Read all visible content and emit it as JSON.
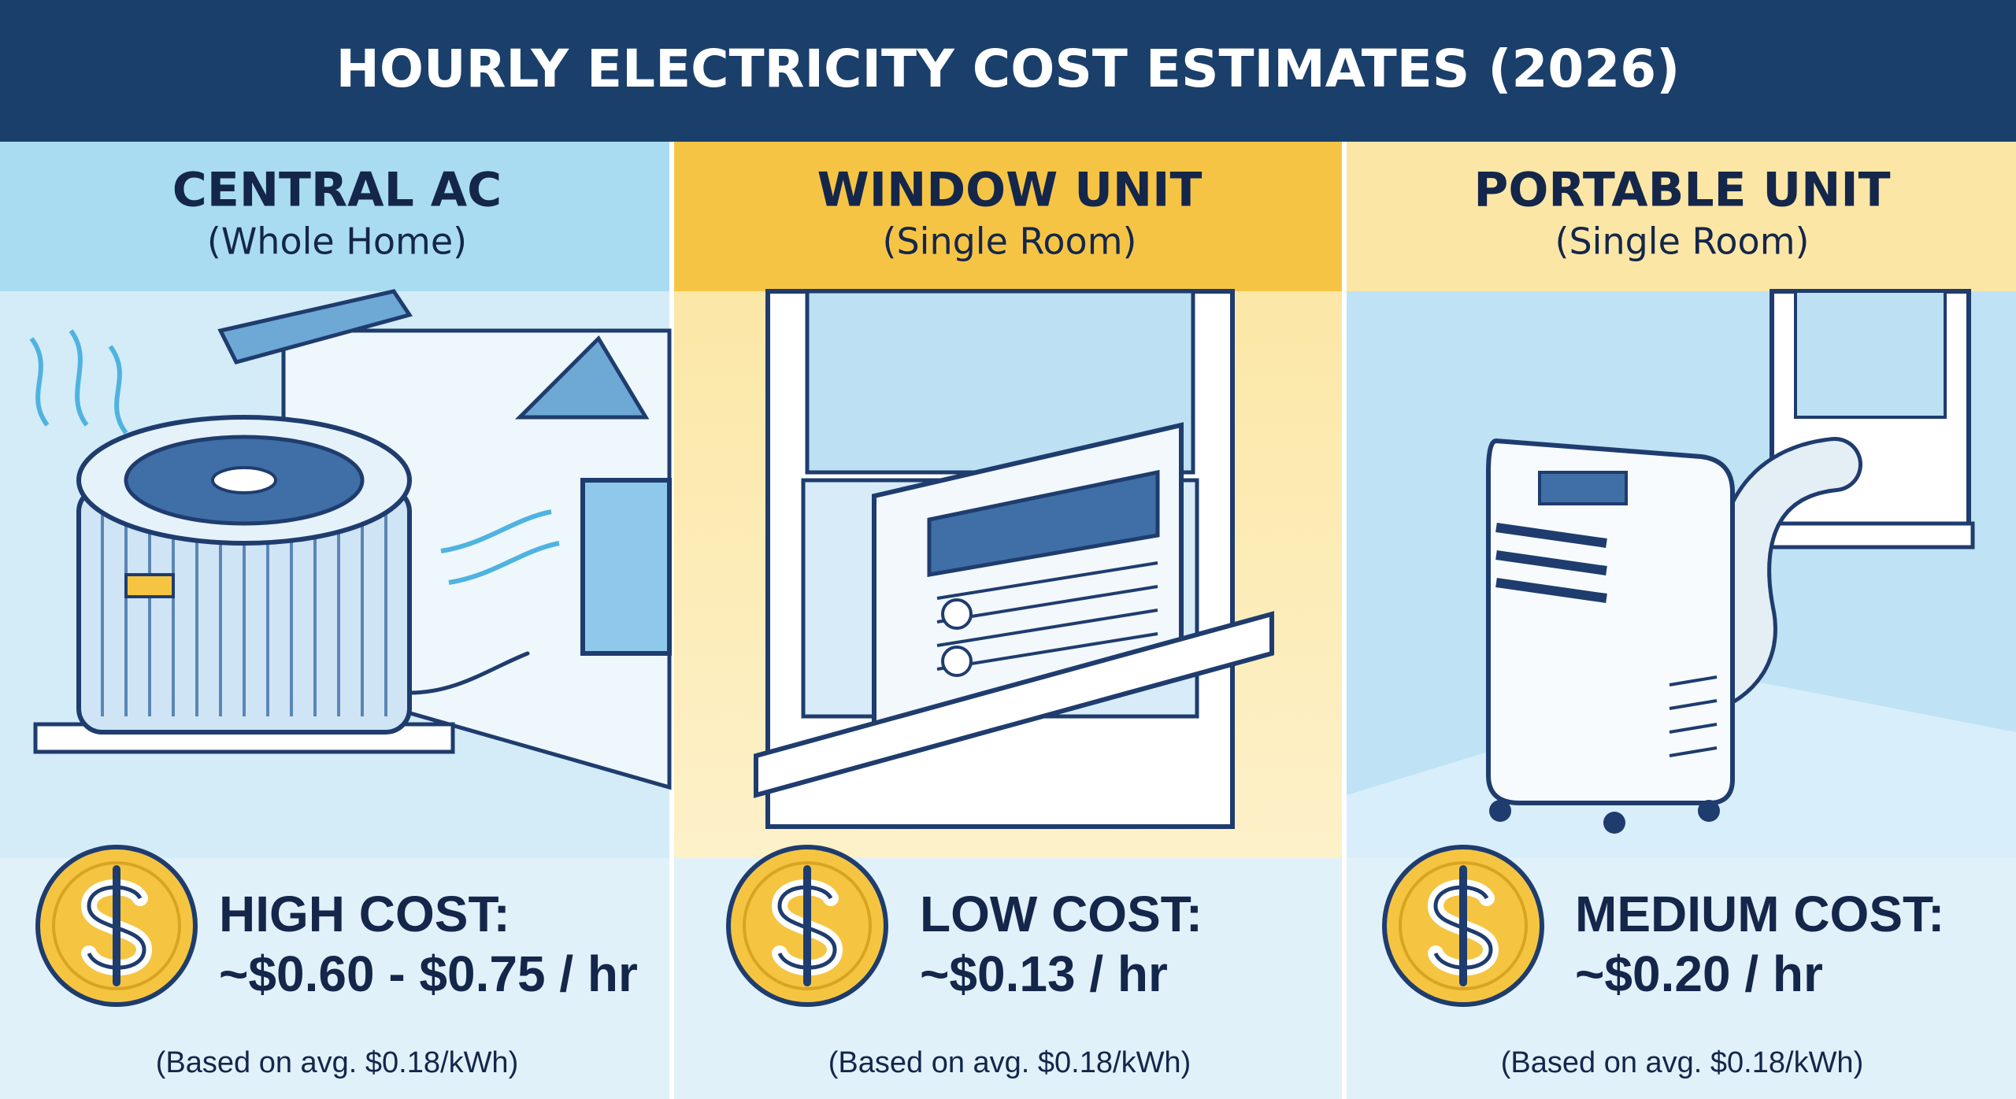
{
  "header": {
    "title": "HOURLY ELECTRICITY COST ESTIMATES (2026)"
  },
  "panels": [
    {
      "heading": "CENTRAL AC",
      "subheading": "(Whole Home)",
      "cost_label": "HIGH COST:",
      "cost_value": "~$0.60 - $0.75 / hr",
      "note": "(Based on avg. $0.18/kWh)"
    },
    {
      "heading": "WINDOW UNIT",
      "subheading": "(Single Room)",
      "cost_label": "LOW COST:",
      "cost_value": "~$0.13 / hr",
      "note": "(Based on avg. $0.18/kWh)"
    },
    {
      "heading": "PORTABLE UNIT",
      "subheading": "(Single Room)",
      "cost_label": "MEDIUM COST:",
      "cost_value": "~$0.20 / hr",
      "note": "(Based on avg. $0.18/kWh)"
    }
  ]
}
